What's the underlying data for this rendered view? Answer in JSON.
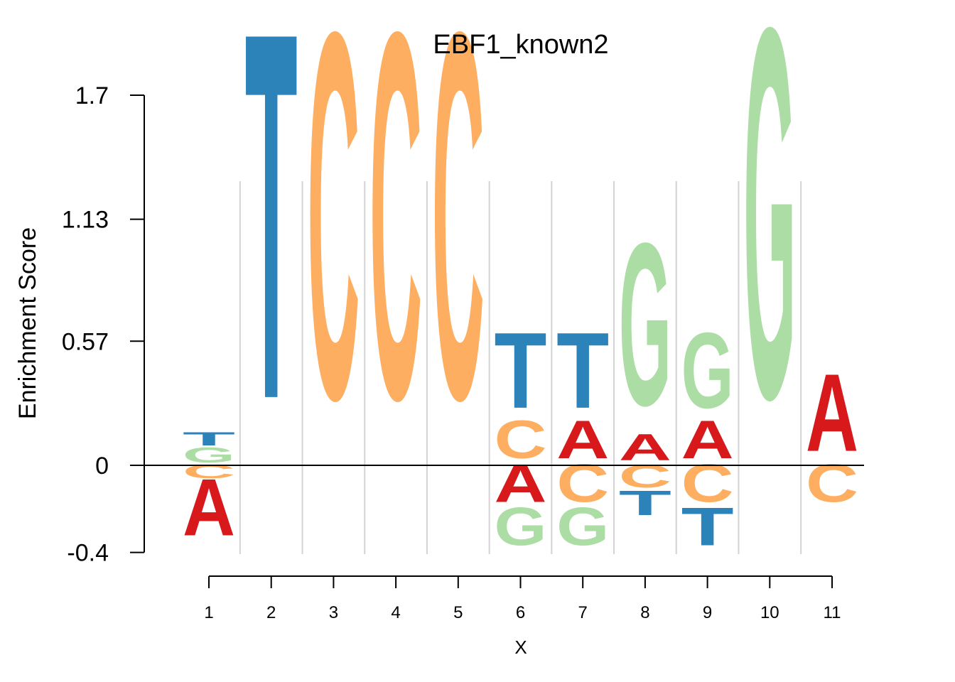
{
  "chart_data": {
    "type": "sequence-logo",
    "title": "EBF1_known2",
    "xlabel": "X",
    "ylabel": "Enrichment Score",
    "ylim": [
      -0.4,
      1.7
    ],
    "yticks": [
      "-0.4",
      "0",
      "0.57",
      "1.13",
      "1.7"
    ],
    "ytick_values": [
      -0.4,
      0,
      0.57,
      1.13,
      1.7
    ],
    "positions": [
      "1",
      "2",
      "3",
      "4",
      "5",
      "6",
      "7",
      "8",
      "9",
      "10",
      "11"
    ],
    "colors": {
      "A": "#D7191C",
      "C": "#FDAE61",
      "G": "#ABDDA4",
      "T": "#2B83BA"
    },
    "columns": [
      {
        "pos": 1,
        "positive": [
          {
            "base": "G",
            "h": 0.08
          },
          {
            "base": "T",
            "h": 0.07
          }
        ],
        "negative": [
          {
            "base": "C",
            "h": 0.07
          },
          {
            "base": "A",
            "h": 0.3
          }
        ]
      },
      {
        "pos": 2,
        "positive": [
          {
            "base": "T",
            "h": 1.94
          }
        ],
        "negative": []
      },
      {
        "pos": 3,
        "positive": [
          {
            "base": "C",
            "h": 1.94
          }
        ],
        "negative": []
      },
      {
        "pos": 4,
        "positive": [
          {
            "base": "C",
            "h": 1.94
          }
        ],
        "negative": []
      },
      {
        "pos": 5,
        "positive": [
          {
            "base": "C",
            "h": 1.94
          }
        ],
        "negative": []
      },
      {
        "pos": 6,
        "positive": [
          {
            "base": "C",
            "h": 0.2
          },
          {
            "base": "T",
            "h": 0.4
          }
        ],
        "negative": [
          {
            "base": "A",
            "h": 0.2
          },
          {
            "base": "G",
            "h": 0.2
          }
        ]
      },
      {
        "pos": 7,
        "positive": [
          {
            "base": "A",
            "h": 0.2
          },
          {
            "base": "T",
            "h": 0.4
          }
        ],
        "negative": [
          {
            "base": "C",
            "h": 0.2
          },
          {
            "base": "G",
            "h": 0.2
          }
        ]
      },
      {
        "pos": 8,
        "positive": [
          {
            "base": "A",
            "h": 0.14
          },
          {
            "base": "G",
            "h": 0.86
          }
        ],
        "negative": [
          {
            "base": "C",
            "h": 0.12
          },
          {
            "base": "T",
            "h": 0.13
          }
        ]
      },
      {
        "pos": 9,
        "positive": [
          {
            "base": "A",
            "h": 0.2
          },
          {
            "base": "G",
            "h": 0.4
          }
        ],
        "negative": [
          {
            "base": "C",
            "h": 0.2
          },
          {
            "base": "T",
            "h": 0.2
          }
        ]
      },
      {
        "pos": 10,
        "positive": [
          {
            "base": "G",
            "h": 1.96
          }
        ],
        "negative": []
      },
      {
        "pos": 11,
        "positive": [
          {
            "base": "A",
            "h": 0.41
          }
        ],
        "negative": [
          {
            "base": "C",
            "h": 0.2
          }
        ]
      }
    ]
  }
}
